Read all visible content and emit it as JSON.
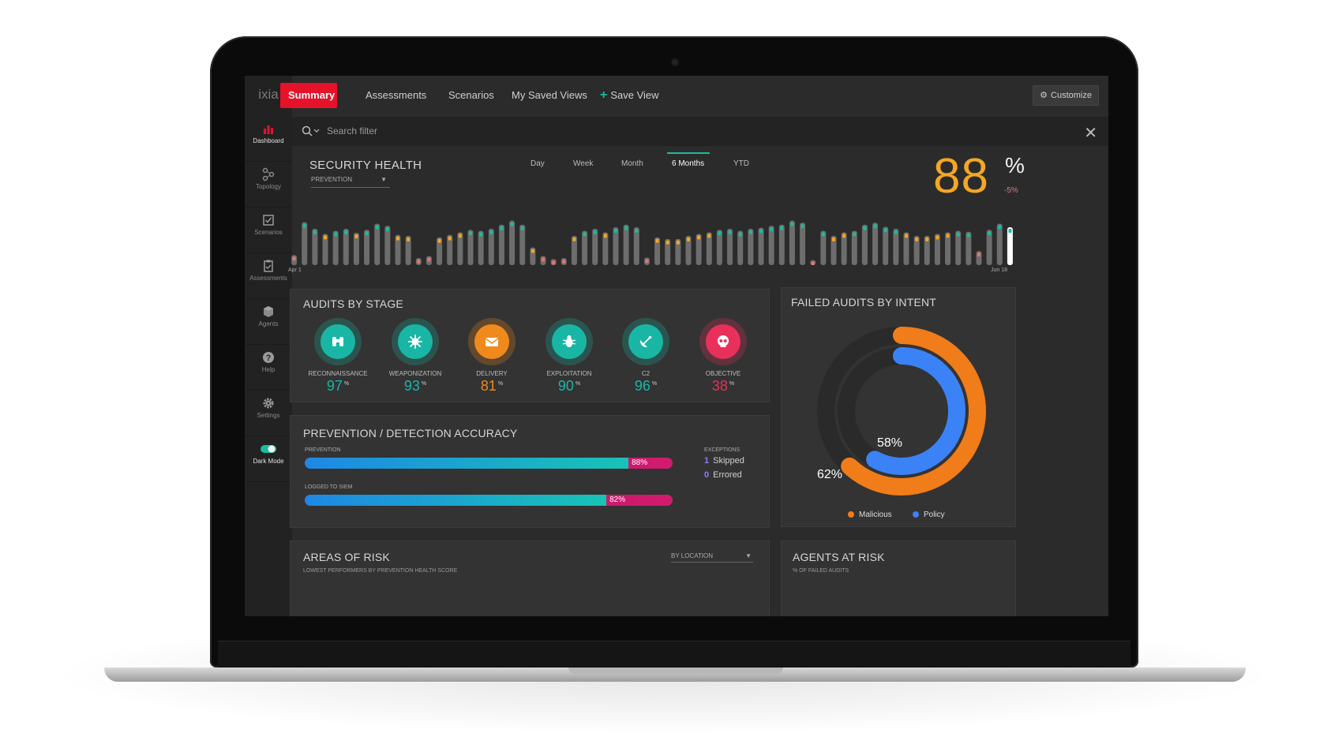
{
  "app": {
    "logo": "ixia"
  },
  "nav": {
    "tabs": [
      {
        "label": "Summary"
      },
      {
        "label": "Assessments"
      },
      {
        "label": "Scenarios"
      },
      {
        "label": "My Saved Views"
      },
      {
        "label": "Save View"
      }
    ],
    "customize_label": "Customize"
  },
  "sidebar": {
    "items": [
      {
        "label": "Dashboard",
        "icon": "bar-chart-icon"
      },
      {
        "label": "Topology",
        "icon": "topology-icon"
      },
      {
        "label": "Scenarios",
        "icon": "scenarios-icon"
      },
      {
        "label": "Assessments",
        "icon": "assessments-icon"
      },
      {
        "label": "Agents",
        "icon": "agents-icon"
      },
      {
        "label": "Help",
        "icon": "help-icon"
      },
      {
        "label": "Settings",
        "icon": "gear-icon"
      },
      {
        "label": "Dark Mode",
        "icon": "toggle-icon"
      }
    ]
  },
  "search": {
    "placeholder": "Search filter"
  },
  "security_health": {
    "title": "SECURITY HEALTH",
    "filter": "PREVENTION",
    "ranges": [
      "Day",
      "Week",
      "Month",
      "6 Months",
      "YTD"
    ],
    "active_range": "6 Months",
    "score": "88",
    "unit": "%",
    "delta": "-5%",
    "start_label": "Apr 1",
    "end_label": "Jun 18"
  },
  "chart_data": {
    "type": "bar",
    "title": "SECURITY HEALTH",
    "x_start": "Apr 1",
    "x_end": "Jun 18",
    "values": [
      20,
      85,
      72,
      62,
      68,
      72,
      64,
      70,
      82,
      78,
      60,
      58,
      14,
      18,
      55,
      60,
      65,
      70,
      68,
      72,
      80,
      88,
      80,
      35,
      18,
      12,
      14,
      58,
      68,
      72,
      65,
      75,
      80,
      75,
      15,
      55,
      52,
      52,
      58,
      62,
      65,
      70,
      72,
      68,
      72,
      74,
      78,
      80,
      88,
      84,
      10,
      68,
      58,
      65,
      68,
      80,
      84,
      76,
      72,
      65,
      58,
      58,
      62,
      65,
      68,
      66,
      28,
      70,
      82,
      75
    ],
    "colors": {
      "bar": "#6d6d6d",
      "teal": "#1abc9c",
      "orange": "#f5a623",
      "red": "#e57373",
      "current": "#ffffff"
    }
  },
  "audits_by_stage": {
    "title": "AUDITS BY STAGE",
    "stages": [
      {
        "name": "RECONNAISSANCE",
        "value": "97",
        "unit": "%",
        "color": "#19b6a5",
        "icon": "binoculars-icon"
      },
      {
        "name": "WEAPONIZATION",
        "value": "93",
        "unit": "%",
        "color": "#19b6a5",
        "icon": "virus-icon"
      },
      {
        "name": "DELIVERY",
        "value": "81",
        "unit": "%",
        "color": "#f08a1c",
        "icon": "envelope-icon"
      },
      {
        "name": "EXPLOITATION",
        "value": "90",
        "unit": "%",
        "color": "#19b6a5",
        "icon": "bug-icon"
      },
      {
        "name": "C2",
        "value": "96",
        "unit": "%",
        "color": "#19b6a5",
        "icon": "satellite-dish-icon"
      },
      {
        "name": "OBJECTIVE",
        "value": "38",
        "unit": "%",
        "color": "#e8305a",
        "icon": "skull-icon"
      }
    ]
  },
  "accuracy": {
    "title": "PREVENTION / DETECTION  ACCURACY",
    "bars": [
      {
        "label": "PREVENTION",
        "value": 88,
        "display": "88%"
      },
      {
        "label": "LOGGED TO SIEM",
        "value": 82,
        "display": "82%"
      }
    ],
    "exceptions_title": "EXCEPTIONS",
    "exceptions": [
      {
        "count": "1",
        "label": "Skipped"
      },
      {
        "count": "0",
        "label": "Errored"
      }
    ]
  },
  "failed_audits": {
    "title": "FAILED AUDITS BY INTENT",
    "outer_value": 62,
    "outer_label": "62%",
    "inner_value": 58,
    "inner_label": "58%",
    "legend": [
      {
        "label": "Malicious",
        "color": "#f07c1a"
      },
      {
        "label": "Policy",
        "color": "#3b82f6"
      }
    ]
  },
  "areas_of_risk": {
    "title": "AREAS OF RISK",
    "subtitle": "LOWEST PERFORMERS BY PREVENTION HEALTH SCORE",
    "filter": "BY LOCATION"
  },
  "agents_at_risk": {
    "title": "AGENTS AT RISK",
    "subtitle": "% OF FAILED AUDITS"
  }
}
